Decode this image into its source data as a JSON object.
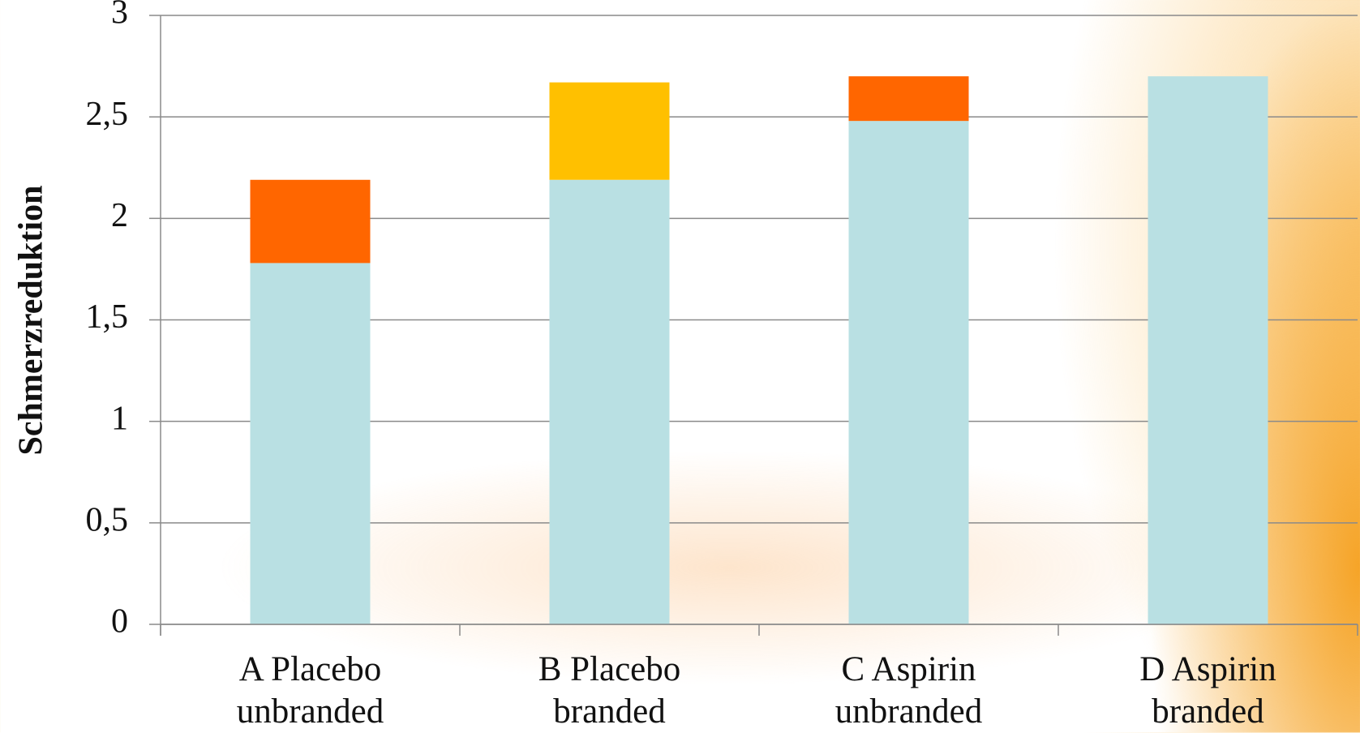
{
  "chart_data": {
    "type": "stacked-bar",
    "ylabel": "Schmerzreduktion",
    "categories": [
      "A Placebo unbranded",
      "B Placebo branded",
      "C Aspirin unbranded",
      "D Aspirin branded"
    ],
    "series": [
      {
        "color": "#b9e0e3",
        "values": [
          1.78,
          2.19,
          2.48,
          2.7
        ]
      },
      {
        "color": "#ff6600",
        "values": [
          0.41,
          null,
          0.22,
          null
        ]
      },
      {
        "color": "#ffc000",
        "values": [
          null,
          0.48,
          null,
          null
        ]
      }
    ],
    "ylim": [
      0,
      3
    ],
    "yticks": [
      0,
      {
        "value": 0.5,
        "label": "0,5"
      },
      1,
      {
        "value": 1.5,
        "label": "1,5"
      },
      2,
      {
        "value": 2.5,
        "label": "2,5"
      },
      3
    ],
    "grid": true
  }
}
